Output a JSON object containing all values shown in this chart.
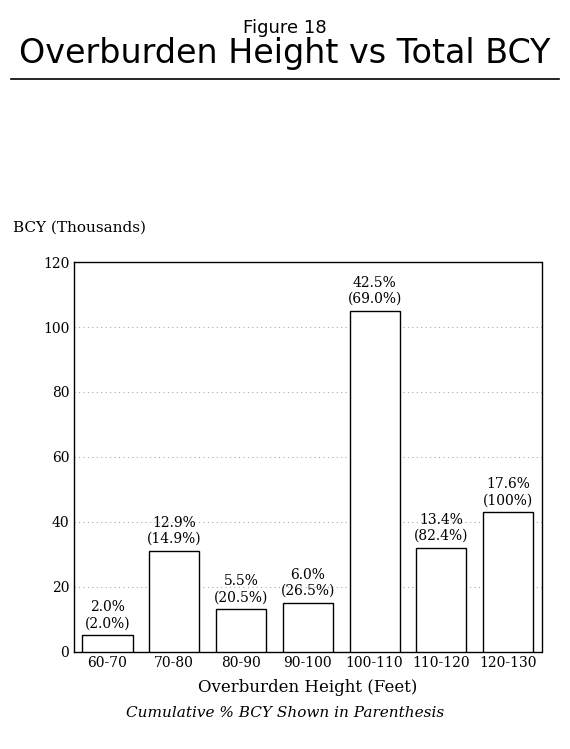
{
  "title_line1": "Figure 18",
  "title_line2": "Overburden Height vs Total BCY",
  "xlabel": "Overburden Height (Feet)",
  "ylabel": "BCY (Thousands)",
  "footnote": "Cumulative % BCY Shown in Parenthesis",
  "categories": [
    "60-70",
    "70-80",
    "80-90",
    "90-100",
    "100-110",
    "110-120",
    "120-130"
  ],
  "values": [
    5,
    31,
    13,
    15,
    105,
    32,
    43
  ],
  "pct_labels": [
    "2.0%",
    "12.9%",
    "5.5%",
    "6.0%",
    "42.5%",
    "13.4%",
    "17.6%"
  ],
  "cum_labels": [
    "(2.0%)",
    "(14.9%)",
    "(20.5%)",
    "(26.5%)",
    "(69.0%)",
    "(82.4%)",
    "(100%)"
  ],
  "ylim": [
    0,
    120
  ],
  "yticks": [
    0,
    20,
    40,
    60,
    80,
    100,
    120
  ],
  "bar_color": "#ffffff",
  "bar_edgecolor": "#000000",
  "grid_color": "#aaaaaa",
  "background_color": "#ffffff",
  "title1_fontsize": 13,
  "title2_fontsize": 24,
  "label_fontsize": 10,
  "tick_fontsize": 10,
  "footnote_fontsize": 11,
  "ylabel_fontsize": 11
}
